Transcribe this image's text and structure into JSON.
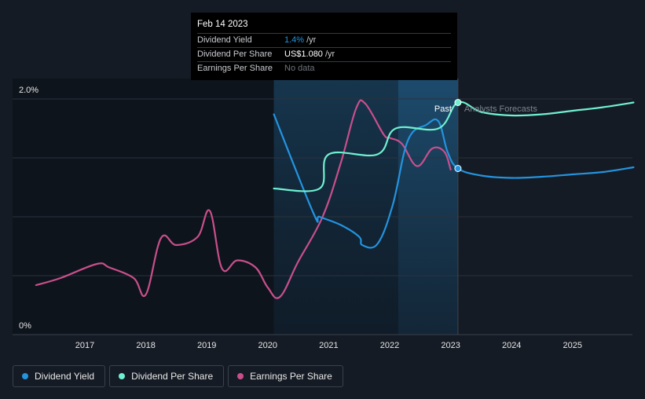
{
  "tooltip": {
    "date": "Feb 14 2023",
    "rows": [
      {
        "label": "Dividend Yield",
        "value": "1.4%",
        "unit": "/yr"
      },
      {
        "label": "Dividend Per Share",
        "value": "US$1.080",
        "unit": "/yr"
      },
      {
        "label": "Earnings Per Share",
        "value": "No data",
        "unit": ""
      }
    ]
  },
  "region_labels": {
    "past": "Past",
    "forecast": "Analysts Forecasts"
  },
  "legend": [
    {
      "label": "Dividend Yield",
      "color": "#2394df"
    },
    {
      "label": "Dividend Per Share",
      "color": "#6ff0d0"
    },
    {
      "label": "Earnings Per Share",
      "color": "#c94f8c"
    }
  ],
  "chart_data": {
    "type": "line",
    "x_ticks": [
      "2017",
      "2018",
      "2019",
      "2020",
      "2021",
      "2022",
      "2023",
      "2024",
      "2025"
    ],
    "y_ticks": [
      "0%",
      "2.0%"
    ],
    "ylim": [
      0,
      2.0
    ],
    "xlim": [
      2016.0,
      2026.0
    ],
    "past_end": 2023.12,
    "series": [
      {
        "name": "Dividend Yield",
        "color": "#2394df",
        "points": [
          [
            2020.1,
            1.87
          ],
          [
            2020.75,
            1.03
          ],
          [
            2020.85,
            1.0
          ],
          [
            2021.2,
            0.93
          ],
          [
            2021.5,
            0.83
          ],
          [
            2021.55,
            0.76
          ],
          [
            2021.8,
            0.77
          ],
          [
            2022.05,
            1.1
          ],
          [
            2022.3,
            1.65
          ],
          [
            2022.6,
            1.78
          ],
          [
            2022.8,
            1.81
          ],
          [
            2022.95,
            1.55
          ],
          [
            2023.12,
            1.41
          ],
          [
            2023.5,
            1.35
          ],
          [
            2024.0,
            1.33
          ],
          [
            2024.5,
            1.34
          ],
          [
            2025.0,
            1.36
          ],
          [
            2025.5,
            1.38
          ],
          [
            2026.0,
            1.42
          ]
        ]
      },
      {
        "name": "Dividend Per Share",
        "color": "#6ff0d0",
        "points": [
          [
            2020.1,
            1.24
          ],
          [
            2020.85,
            1.24
          ],
          [
            2021.0,
            1.53
          ],
          [
            2021.8,
            1.53
          ],
          [
            2022.1,
            1.75
          ],
          [
            2022.8,
            1.75
          ],
          [
            2023.12,
            1.97
          ],
          [
            2023.5,
            1.89
          ],
          [
            2024.0,
            1.86
          ],
          [
            2024.5,
            1.87
          ],
          [
            2025.0,
            1.9
          ],
          [
            2025.5,
            1.93
          ],
          [
            2026.0,
            1.97
          ]
        ]
      },
      {
        "name": "Earnings Per Share",
        "color": "#c94f8c",
        "points": [
          [
            2016.2,
            0.42
          ],
          [
            2016.6,
            0.48
          ],
          [
            2017.2,
            0.6
          ],
          [
            2017.4,
            0.57
          ],
          [
            2017.8,
            0.48
          ],
          [
            2018.0,
            0.34
          ],
          [
            2018.25,
            0.82
          ],
          [
            2018.5,
            0.76
          ],
          [
            2018.85,
            0.83
          ],
          [
            2019.05,
            1.05
          ],
          [
            2019.25,
            0.56
          ],
          [
            2019.5,
            0.63
          ],
          [
            2019.8,
            0.57
          ],
          [
            2020.0,
            0.4
          ],
          [
            2020.2,
            0.32
          ],
          [
            2020.5,
            0.62
          ],
          [
            2020.9,
            1.0
          ],
          [
            2021.2,
            1.46
          ],
          [
            2021.45,
            1.92
          ],
          [
            2021.6,
            1.96
          ],
          [
            2021.9,
            1.7
          ],
          [
            2022.0,
            1.67
          ],
          [
            2022.2,
            1.62
          ],
          [
            2022.45,
            1.43
          ],
          [
            2022.7,
            1.58
          ],
          [
            2022.9,
            1.55
          ],
          [
            2023.0,
            1.4
          ]
        ]
      }
    ]
  }
}
